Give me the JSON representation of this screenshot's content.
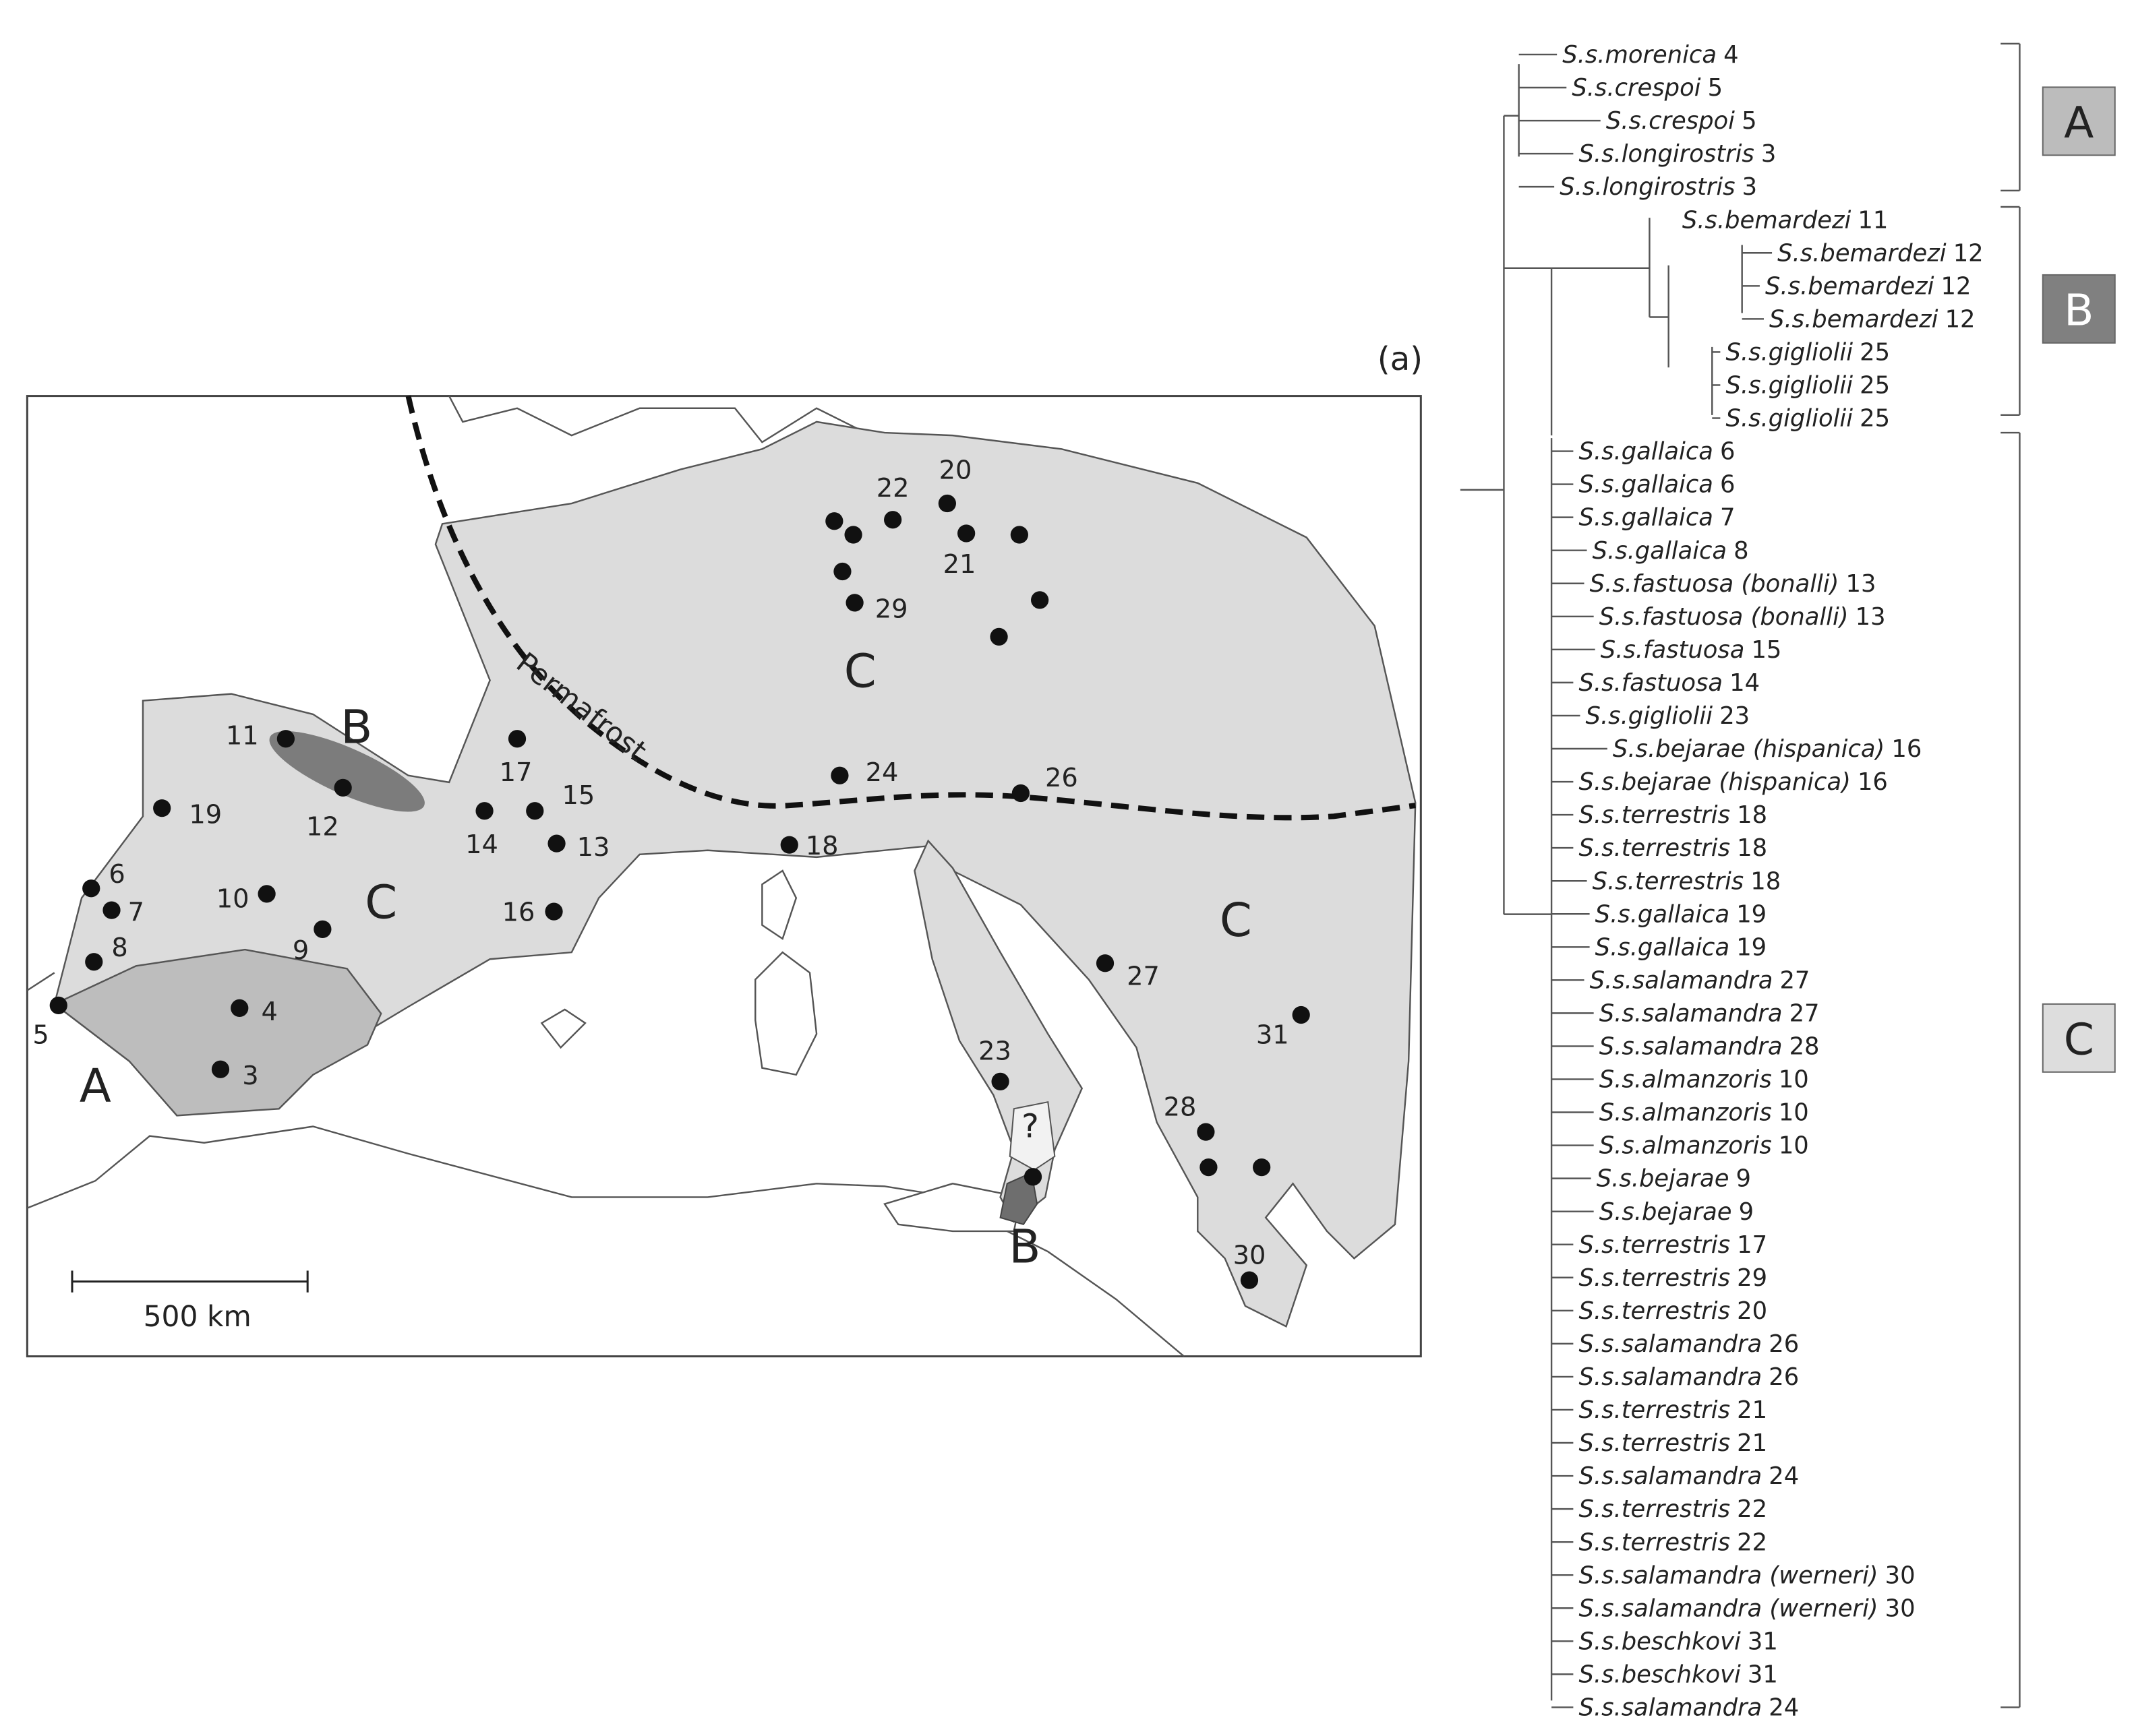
{
  "figure_label": "(a)",
  "map": {
    "scale_bar": "500 km",
    "permafrost": "Permafrost",
    "uncertain": "?",
    "regions": [
      "A",
      "B",
      "C",
      "C",
      "C",
      "B"
    ],
    "sites": [
      3,
      4,
      5,
      6,
      7,
      8,
      9,
      10,
      11,
      12,
      13,
      14,
      15,
      16,
      17,
      18,
      19,
      20,
      21,
      22,
      23,
      24,
      26,
      27,
      28,
      29,
      30,
      31
    ]
  },
  "tree": {
    "clades": [
      "A",
      "B",
      "C"
    ],
    "leaves": [
      {
        "name": "S.s.morenica",
        "site": 4
      },
      {
        "name": "S.s.crespoi",
        "site": 5
      },
      {
        "name": "S.s.crespoi",
        "site": 5
      },
      {
        "name": "S.s.longirostris",
        "site": 3
      },
      {
        "name": "S.s.longirostris",
        "site": 3
      },
      {
        "name": "S.s.bemardezi",
        "site": 11
      },
      {
        "name": "S.s.bemardezi",
        "site": 12
      },
      {
        "name": "S.s.bemardezi",
        "site": 12
      },
      {
        "name": "S.s.bemardezi",
        "site": 12
      },
      {
        "name": "S.s.gigliolii",
        "site": 25
      },
      {
        "name": "S.s.gigliolii",
        "site": 25
      },
      {
        "name": "S.s.gigliolii",
        "site": 25
      },
      {
        "name": "S.s.gallaica",
        "site": 6
      },
      {
        "name": "S.s.gallaica",
        "site": 6
      },
      {
        "name": "S.s.gallaica",
        "site": 7
      },
      {
        "name": "S.s.gallaica",
        "site": 8
      },
      {
        "name": "S.s.fastuosa (bonalli)",
        "site": 13
      },
      {
        "name": "S.s.fastuosa (bonalli)",
        "site": 13
      },
      {
        "name": "S.s.fastuosa",
        "site": 15
      },
      {
        "name": "S.s.fastuosa",
        "site": 14
      },
      {
        "name": "S.s.gigliolii",
        "site": 23
      },
      {
        "name": "S.s.bejarae (hispanica)",
        "site": 16
      },
      {
        "name": "S.s.bejarae (hispanica)",
        "site": 16
      },
      {
        "name": "S.s.terrestris",
        "site": 18
      },
      {
        "name": "S.s.terrestris",
        "site": 18
      },
      {
        "name": "S.s.terrestris",
        "site": 18
      },
      {
        "name": "S.s.gallaica",
        "site": 19
      },
      {
        "name": "S.s.gallaica",
        "site": 19
      },
      {
        "name": "S.s.salamandra",
        "site": 27
      },
      {
        "name": "S.s.salamandra",
        "site": 27
      },
      {
        "name": "S.s.salamandra",
        "site": 28
      },
      {
        "name": "S.s.almanzoris",
        "site": 10
      },
      {
        "name": "S.s.almanzoris",
        "site": 10
      },
      {
        "name": "S.s.almanzoris",
        "site": 10
      },
      {
        "name": "S.s.bejarae",
        "site": 9
      },
      {
        "name": "S.s.bejarae",
        "site": 9
      },
      {
        "name": "S.s.terrestris",
        "site": 17
      },
      {
        "name": "S.s.terrestris",
        "site": 29
      },
      {
        "name": "S.s.terrestris",
        "site": 20
      },
      {
        "name": "S.s.salamandra",
        "site": 26
      },
      {
        "name": "S.s.salamandra",
        "site": 26
      },
      {
        "name": "S.s.terrestris",
        "site": 21
      },
      {
        "name": "S.s.terrestris",
        "site": 21
      },
      {
        "name": "S.s.salamandra",
        "site": 24
      },
      {
        "name": "S.s.terrestris",
        "site": 22
      },
      {
        "name": "S.s.terrestris",
        "site": 22
      },
      {
        "name": "S.s.salamandra (werneri)",
        "site": 30
      },
      {
        "name": "S.s.salamandra (werneri)",
        "site": 30
      },
      {
        "name": "S.s.beschkovi",
        "site": 31
      },
      {
        "name": "S.s.beschkovi",
        "site": 31
      },
      {
        "name": "S.s.salamandra",
        "site": 24
      }
    ]
  }
}
